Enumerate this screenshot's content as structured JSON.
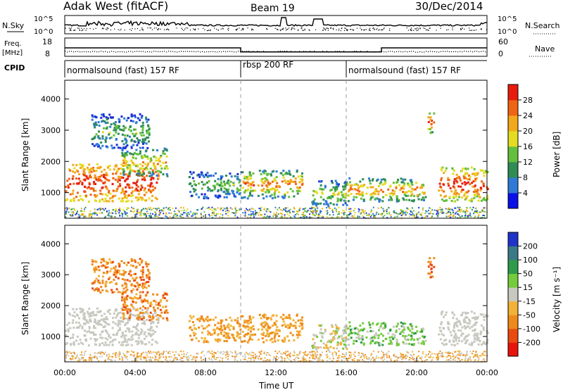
{
  "header": {
    "station": "Adak West (fitACF)",
    "beam": "Beam 19",
    "date": "30/Dec/2014"
  },
  "strips": {
    "nsky_label": "N.Sky",
    "nsky_ticks": [
      "10^5",
      "10^0"
    ],
    "nsearch_label": "N.Search",
    "freq_label_1": "Freq.",
    "freq_label_2": "[MHz]",
    "freq_ticks": [
      "18",
      "8"
    ],
    "nave_label": "Nave",
    "nave_ticks": [
      "60",
      "0"
    ],
    "cpid_label": "CPID",
    "freq_series_mhz": [
      {
        "t": 0,
        "f": 12.6
      },
      {
        "t": 10,
        "f": 12.6
      },
      {
        "t": 10,
        "f": 10.4
      },
      {
        "t": 18,
        "f": 10.4
      },
      {
        "t": 18,
        "f": 12.6
      },
      {
        "t": 24,
        "f": 12.6
      }
    ],
    "cpid_segments": [
      {
        "start": 0,
        "end": 10,
        "label": "normalsound (fast) 157 RF"
      },
      {
        "start": 10,
        "end": 16,
        "label": "rbsp 200 RF"
      },
      {
        "start": 16,
        "end": 24,
        "label": "normalsound (fast) 157 RF"
      }
    ]
  },
  "chart_data": [
    {
      "type": "heatmap",
      "name": "power",
      "ylabel": "Slant Range [km]",
      "xlim": [
        0,
        24
      ],
      "ylim": [
        180,
        4600
      ],
      "yticks": [
        "1000",
        "2000",
        "3000",
        "4000"
      ],
      "colorbar_label": "Power [dB]",
      "colorbar_ticks": [
        "4",
        "8",
        "12",
        "16",
        "20",
        "24",
        "28"
      ],
      "colorbar_colors": [
        "#0a10e8",
        "#2e7ad6",
        "#2e8c54",
        "#63c03c",
        "#e4dc20",
        "#f3a81c",
        "#ef6414",
        "#e81c0c"
      ]
    },
    {
      "type": "heatmap",
      "name": "velocity",
      "ylabel": "Slant Range [km]",
      "xlim": [
        0,
        24
      ],
      "ylim": [
        180,
        4600
      ],
      "yticks": [
        "1000",
        "2000",
        "3000",
        "4000"
      ],
      "xticks": [
        "00:00",
        "04:00",
        "08:00",
        "12:00",
        "16:00",
        "20:00",
        "00:00"
      ],
      "xlabel": "Time UT",
      "colorbar_label": "Velocity [m s⁻¹]",
      "colorbar_ticks": [
        "200",
        "100",
        "50",
        "15",
        "-15",
        "-50",
        "-100",
        "-200"
      ],
      "colorbar_colors": [
        "#1f33c8",
        "#3a7a86",
        "#2e9a4a",
        "#74cc3c",
        "#c8c8c0",
        "#f2b238",
        "#ef8a1a",
        "#ea4a10",
        "#e8140c"
      ]
    }
  ],
  "echo_regions": {
    "power_colors": [
      "#1a2fd8",
      "#2e7ad6",
      "#2e8c54",
      "#63c03c",
      "#e4dc20",
      "#f3a81c",
      "#ef6414",
      "#e81c0c"
    ],
    "vel_colors": [
      "#2e9a4a",
      "#74cc3c",
      "#c8c8c0",
      "#f2b238",
      "#ef8a1a",
      "#ea4a10"
    ],
    "regions": [
      {
        "t0": 0.0,
        "t1": 5.3,
        "r0": 700,
        "r1": 1900,
        "p": [
          4,
          7
        ],
        "v": [
          2,
          2
        ]
      },
      {
        "t0": 3.2,
        "t1": 5.8,
        "r0": 1500,
        "r1": 2400,
        "p": [
          1,
          5
        ],
        "v": [
          3,
          5
        ]
      },
      {
        "t0": 1.5,
        "t1": 4.8,
        "r0": 2400,
        "r1": 3500,
        "p": [
          0,
          3
        ],
        "v": [
          3,
          5
        ]
      },
      {
        "t0": 7.0,
        "t1": 10.0,
        "r0": 800,
        "r1": 1650,
        "p": [
          0,
          3
        ],
        "v": [
          3,
          4
        ]
      },
      {
        "t0": 10.0,
        "t1": 13.5,
        "r0": 800,
        "r1": 1700,
        "p": [
          1,
          6
        ],
        "v": [
          3,
          4
        ]
      },
      {
        "t0": 14.0,
        "t1": 16.0,
        "r0": 500,
        "r1": 1400,
        "p": [
          0,
          4
        ],
        "v": [
          1,
          3
        ]
      },
      {
        "t0": 16.0,
        "t1": 20.5,
        "r0": 700,
        "r1": 1450,
        "p": [
          1,
          6
        ],
        "v": [
          0,
          2
        ]
      },
      {
        "t0": 21.2,
        "t1": 24.0,
        "r0": 700,
        "r1": 1800,
        "p": [
          3,
          7
        ],
        "v": [
          2,
          2
        ]
      },
      {
        "t0": 20.6,
        "t1": 21.0,
        "r0": 2900,
        "r1": 3600,
        "p": [
          2,
          7
        ],
        "v": [
          4,
          5
        ]
      }
    ]
  }
}
